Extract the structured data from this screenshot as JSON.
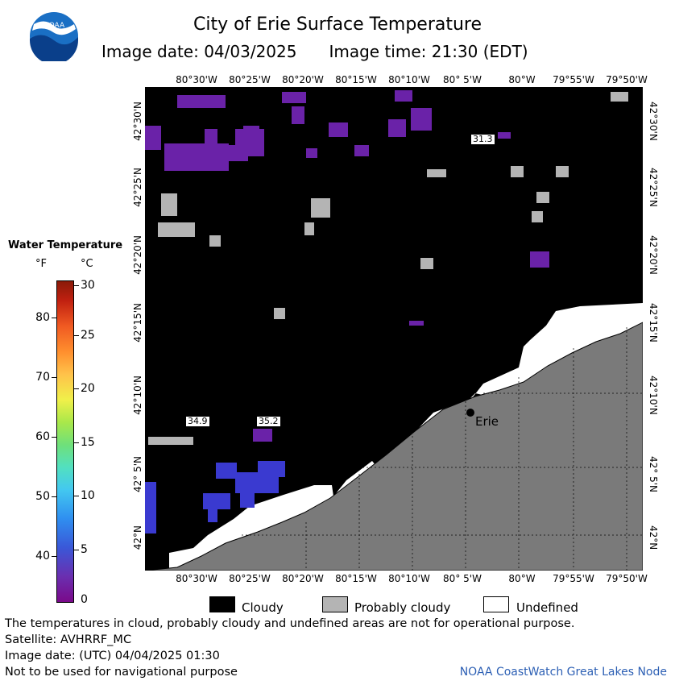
{
  "header": {
    "title": "City of Erie Surface Temperature",
    "image_date": "Image date: 04/03/2025",
    "image_time": "Image time: 21:30 (EDT)",
    "logo_text": "NOAA"
  },
  "legend": {
    "title": "Water Temperature",
    "unit_f": "°F",
    "unit_c": "°C",
    "fahrenheit_ticks": [
      "80",
      "70",
      "60",
      "50",
      "40"
    ],
    "celsius_ticks": [
      "30",
      "25",
      "20",
      "15",
      "10",
      "5",
      "0"
    ]
  },
  "map": {
    "lon_labels": [
      "80°30'W",
      "80°25'W",
      "80°20'W",
      "80°15'W",
      "80°10'W",
      "80° 5'W",
      "80°W",
      "79°55'W",
      "79°50'W"
    ],
    "lat_labels": [
      "42°30'N",
      "42°25'N",
      "42°20'N",
      "42°15'N",
      "42°10'N",
      "42° 5'N",
      "42°N"
    ],
    "city": "Erie",
    "temp_labels": [
      "31.3",
      "34.9",
      "35.2"
    ],
    "colors": {
      "cloudy": "#000000",
      "probably_cloudy": "#b4b4b4",
      "land": "#7a7a7a",
      "undefined": "#ffffff",
      "cold_water": "#6a22a8",
      "cool_water": "#3a3ad0"
    }
  },
  "key": {
    "cloudy": "Cloudy",
    "probably_cloudy": "Probably cloudy",
    "undefined": "Undefined"
  },
  "footer": {
    "disclaimer": "The temperatures in cloud, probably cloudy and undefined areas are not for operational purpose.",
    "satellite": "Satellite: AVHRRF_MC",
    "utc_date": "Image date: (UTC) 04/04/2025  01:30",
    "nav_warning": "Not to be used for navigational purpose",
    "credit": "NOAA CoastWatch Great Lakes Node"
  }
}
